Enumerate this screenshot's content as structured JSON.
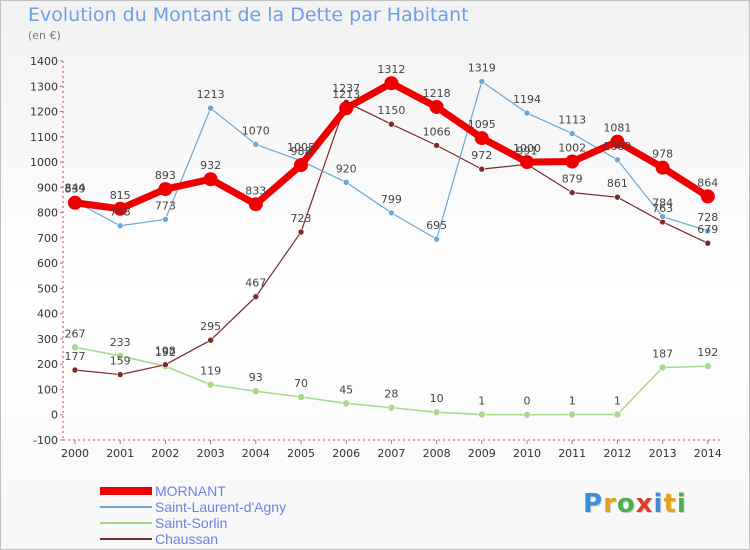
{
  "title": "Evolution du Montant de la Dette par Habitant",
  "subtitle": "(en €)",
  "logo": "Proxiti",
  "colors": {
    "title": "#6f9ee8",
    "legend_text": "#6f7fe6"
  },
  "chart_data": {
    "type": "line",
    "title": "Evolution du Montant de la Dette par Habitant",
    "subtitle": "(en €)",
    "x": [
      "2000",
      "2001",
      "2002",
      "2003",
      "2004",
      "2005",
      "2006",
      "2007",
      "2008",
      "2009",
      "2010",
      "2011",
      "2012",
      "2013",
      "2014"
    ],
    "y_ticks": [
      "-100",
      "0",
      "100",
      "200",
      "300",
      "400",
      "500",
      "600",
      "700",
      "800",
      "900",
      "1000",
      "1100",
      "1200",
      "1300",
      "1400"
    ],
    "ylim": [
      -100,
      1400
    ],
    "grid": false,
    "legend_position": "bottom-left",
    "series": [
      {
        "name": "MORNANT",
        "color": "#ee0000",
        "values": [
          839,
          815,
          893,
          932,
          833,
          988,
          1213,
          1312,
          1218,
          1095,
          1000,
          1002,
          1081,
          978,
          864
        ],
        "labels": [
          "839",
          "815",
          "893",
          "932",
          "833",
          "988",
          "1213",
          "1312",
          "1218",
          "1095",
          "1000",
          "1002",
          "1081",
          "978",
          "864"
        ]
      },
      {
        "name": "Saint-Laurent-d'Agny",
        "color": "#6fa5d2",
        "values": [
          844,
          748,
          773,
          1213,
          1070,
          1005,
          920,
          799,
          695,
          1319,
          1194,
          1113,
          1009,
          784,
          728
        ],
        "labels": [
          "844",
          "748",
          "773",
          "1213",
          "1070",
          "1005",
          "920",
          "799",
          "695",
          "1319",
          "1194",
          "1113",
          "1009",
          "784",
          "728"
        ]
      },
      {
        "name": "Saint-Sorlin",
        "color": "#a6d98a",
        "values": [
          267,
          233,
          192,
          119,
          93,
          70,
          45,
          28,
          10,
          1,
          0,
          1,
          1,
          187,
          192
        ],
        "labels": [
          "267",
          "233",
          "192",
          "119",
          "93",
          "70",
          "45",
          "28",
          "10",
          "1",
          "0",
          "1",
          "1",
          "187",
          "192"
        ]
      },
      {
        "name": "Chaussan",
        "color": "#7a2a2a",
        "values": [
          177,
          159,
          198,
          295,
          467,
          723,
          1237,
          1150,
          1066,
          972,
          991,
          879,
          861,
          763,
          679
        ],
        "labels": [
          "177",
          "159",
          "198",
          "295",
          "467",
          "723",
          "1237",
          "1150",
          "1066",
          "972",
          "991",
          "879",
          "861",
          "763",
          "679"
        ]
      }
    ]
  }
}
